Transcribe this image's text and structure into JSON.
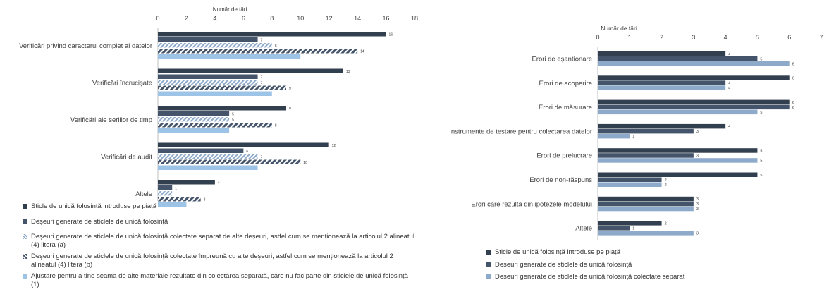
{
  "colors": {
    "dark": "#323f4f",
    "mid": "#44546a",
    "light": "#8eaacb",
    "pale": "#9dc3e6",
    "axis": "#bfbfbf"
  },
  "chart_data": [
    {
      "type": "bar",
      "orientation": "horizontal",
      "xlabel": "Număr de țări",
      "xlim": [
        0,
        18
      ],
      "xticks": [
        0,
        2,
        4,
        6,
        8,
        10,
        12,
        14,
        16,
        18
      ],
      "categories": [
        "Verificări privind caracterul complet al datelor",
        "Verificări încrucișate",
        "Verificări ale seriilor de timp",
        "Verificări de audit",
        "Altele"
      ],
      "series": [
        {
          "name": "Sticle de unică folosință introduse pe piață",
          "color": "#323f4f",
          "pattern": "solid",
          "values": [
            16,
            13,
            9,
            12,
            4
          ]
        },
        {
          "name": "Deșeuri generate de sticlele de unică folosință",
          "color": "#44546a",
          "pattern": "solid",
          "values": [
            7,
            7,
            5,
            6,
            1
          ]
        },
        {
          "name": "Deșeuri generate de sticlele de unică folosință colectate separat de alte deșeuri, astfel cum se menționează la articolul 2 alineatul (4) litera (a)",
          "color": "#8eaacb",
          "pattern": "hatch-light",
          "values": [
            8,
            7,
            5,
            7,
            1
          ]
        },
        {
          "name": "Deșeuri generate de sticlele de unică folosință colectate împreună cu alte deșeuri, astfel cum se menționează la articolul 2 alineatul (4) litera (b)",
          "color": "#44546a",
          "pattern": "hatch-dark",
          "values": [
            14,
            9,
            8,
            10,
            3
          ]
        },
        {
          "name": "Ajustare pentru a ține seama de alte materiale rezultate din colectarea separată, care nu fac parte din sticlele de unică folosință (1)",
          "color": "#9dc3e6",
          "pattern": "solid",
          "values": [
            10,
            8,
            5,
            7,
            2
          ]
        }
      ],
      "data_labels_series": [
        0,
        1,
        2,
        3
      ],
      "legend": "bottom-left"
    },
    {
      "type": "bar",
      "orientation": "horizontal",
      "xlabel": "Număr de țări",
      "xlim": [
        0,
        7
      ],
      "xticks": [
        0,
        1,
        2,
        3,
        4,
        5,
        6,
        7
      ],
      "categories": [
        "Erori de eșantionare",
        "Erori de acoperire",
        "Erori de măsurare",
        "Instrumente de testare pentru colectarea datelor",
        "Erori de prelucrare",
        "Erori de non-răspuns",
        "Erori care rezultă din ipotezele modelului",
        "Altele"
      ],
      "series": [
        {
          "name": "Sticle de unică folosință introduse pe piață",
          "color": "#323f4f",
          "values": [
            4,
            6,
            6,
            4,
            5,
            5,
            3,
            2
          ]
        },
        {
          "name": "Deșeuri generate de sticlele de unică folosință",
          "color": "#44546a",
          "values": [
            5,
            4,
            6,
            3,
            3,
            2,
            3,
            1
          ]
        },
        {
          "name": "Deșeuri generate de sticlele de unică folosință colectate separat",
          "color": "#8eaacb",
          "values": [
            6,
            4,
            5,
            1,
            5,
            2,
            3,
            3
          ]
        }
      ],
      "data_labels_series": [
        0,
        1,
        2
      ],
      "legend": "bottom-left"
    }
  ]
}
